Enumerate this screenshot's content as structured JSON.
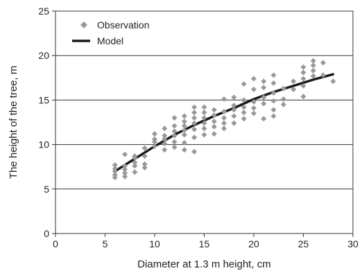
{
  "chart_data": {
    "type": "scatter",
    "title": "",
    "xlabel": "Diameter at 1.3 m height, cm",
    "ylabel": "The height of the tree, m",
    "xlim": [
      0,
      30
    ],
    "ylim": [
      0,
      25
    ],
    "xticks": [
      0,
      5,
      10,
      15,
      20,
      25,
      30
    ],
    "yticks": [
      0,
      5,
      10,
      15,
      20,
      25
    ],
    "grid": "horizontal",
    "legend_position": "top-left",
    "colors": {
      "observation": "#999999",
      "model": "#1a1a1a"
    },
    "series": [
      {
        "name": "Observation",
        "kind": "points",
        "marker": "diamond",
        "points": [
          [
            6,
            6.3
          ],
          [
            6,
            6.6
          ],
          [
            6,
            7.0
          ],
          [
            6,
            7.3
          ],
          [
            6,
            7.7
          ],
          [
            7,
            6.4
          ],
          [
            7,
            6.8
          ],
          [
            7,
            7.2
          ],
          [
            7,
            7.6
          ],
          [
            7,
            8.9
          ],
          [
            8,
            6.9
          ],
          [
            8,
            7.6
          ],
          [
            8,
            8.0
          ],
          [
            8,
            8.5
          ],
          [
            8,
            8.7
          ],
          [
            9,
            7.4
          ],
          [
            9,
            7.8
          ],
          [
            9,
            8.7
          ],
          [
            9,
            9.6
          ],
          [
            10,
            9.8
          ],
          [
            10,
            10.3
          ],
          [
            10,
            10.6
          ],
          [
            10,
            11.2
          ],
          [
            11,
            9.4
          ],
          [
            11,
            10.1
          ],
          [
            11,
            10.6
          ],
          [
            11,
            11.0
          ],
          [
            11,
            11.8
          ],
          [
            12,
            9.7
          ],
          [
            12,
            10.3
          ],
          [
            12,
            11.0
          ],
          [
            12,
            11.5
          ],
          [
            12,
            12.1
          ],
          [
            12,
            13.0
          ],
          [
            13,
            9.4
          ],
          [
            13,
            10.2
          ],
          [
            13,
            11.1
          ],
          [
            13,
            11.6
          ],
          [
            13,
            12.1
          ],
          [
            13,
            12.6
          ],
          [
            13,
            13.2
          ],
          [
            14,
            9.2
          ],
          [
            14,
            10.8
          ],
          [
            14,
            11.7
          ],
          [
            14,
            12.4
          ],
          [
            14,
            13.0
          ],
          [
            14,
            13.6
          ],
          [
            14,
            14.2
          ],
          [
            15,
            11.1
          ],
          [
            15,
            11.8
          ],
          [
            15,
            12.4
          ],
          [
            15,
            13.0
          ],
          [
            15,
            13.6
          ],
          [
            15,
            14.2
          ],
          [
            16,
            11.2
          ],
          [
            16,
            12.0
          ],
          [
            16,
            12.6
          ],
          [
            16,
            13.3
          ],
          [
            16,
            13.9
          ],
          [
            17,
            11.8
          ],
          [
            17,
            12.4
          ],
          [
            17,
            13.0
          ],
          [
            17,
            13.7
          ],
          [
            17,
            15.1
          ],
          [
            18,
            12.4
          ],
          [
            18,
            13.2
          ],
          [
            18,
            13.9
          ],
          [
            18,
            14.4
          ],
          [
            18,
            15.3
          ],
          [
            19,
            12.9
          ],
          [
            19,
            13.6
          ],
          [
            19,
            14.2
          ],
          [
            19,
            15.0
          ],
          [
            19,
            16.8
          ],
          [
            20,
            13.5
          ],
          [
            20,
            14.1
          ],
          [
            20,
            14.8
          ],
          [
            20,
            16.2
          ],
          [
            20,
            17.4
          ],
          [
            21,
            12.9
          ],
          [
            21,
            14.6
          ],
          [
            21,
            15.3
          ],
          [
            21,
            16.4
          ],
          [
            21,
            17.1
          ],
          [
            22,
            13.2
          ],
          [
            22,
            13.9
          ],
          [
            22,
            14.9
          ],
          [
            22,
            15.8
          ],
          [
            22,
            16.9
          ],
          [
            22,
            17.8
          ],
          [
            23,
            14.5
          ],
          [
            23,
            15.1
          ],
          [
            23,
            16.3
          ],
          [
            24,
            16.2
          ],
          [
            24,
            17.1
          ],
          [
            25,
            15.4
          ],
          [
            25,
            16.6
          ],
          [
            25,
            17.4
          ],
          [
            25,
            18.1
          ],
          [
            25,
            18.7
          ],
          [
            26,
            17.7
          ],
          [
            26,
            18.3
          ],
          [
            26,
            18.9
          ],
          [
            26,
            19.4
          ],
          [
            27,
            17.8
          ],
          [
            27,
            19.2
          ],
          [
            28,
            17.1
          ]
        ]
      },
      {
        "name": "Model",
        "kind": "line",
        "points": [
          [
            6,
            7.0
          ],
          [
            8,
            8.4
          ],
          [
            10,
            9.8
          ],
          [
            12,
            11.1
          ],
          [
            14,
            12.2
          ],
          [
            16,
            13.2
          ],
          [
            18,
            14.1
          ],
          [
            20,
            15.1
          ],
          [
            22,
            15.9
          ],
          [
            24,
            16.6
          ],
          [
            26,
            17.3
          ],
          [
            28,
            17.9
          ]
        ]
      }
    ]
  }
}
